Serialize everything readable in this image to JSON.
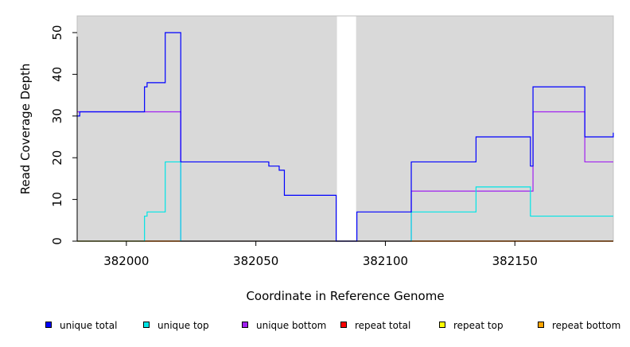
{
  "chart_data": {
    "type": "line",
    "title": "",
    "xlabel": "Coordinate in Reference Genome",
    "ylabel": "Read Coverage Depth",
    "xlim": [
      381981,
      382188
    ],
    "ylim": [
      0,
      54
    ],
    "x_ticks": [
      382000,
      382050,
      382100,
      382150
    ],
    "x_tick_labels": [
      "382000",
      "382050",
      "382100",
      "382150"
    ],
    "y_ticks": [
      0,
      10,
      20,
      30,
      40,
      50
    ],
    "y_tick_labels": [
      "0",
      "10",
      "20",
      "30",
      "40",
      "50"
    ],
    "background_color": "#d9d9d9",
    "gap_region": [
      382081,
      382089
    ],
    "grid": false,
    "legend_position": "bottom",
    "series": [
      {
        "name": "unique total",
        "color": "#0000ff",
        "step_points": [
          [
            381981,
            30
          ],
          [
            381982,
            31
          ],
          [
            382007,
            37
          ],
          [
            382008,
            38
          ],
          [
            382015,
            50
          ],
          [
            382021,
            19
          ],
          [
            382055,
            18
          ],
          [
            382059,
            17
          ],
          [
            382061,
            11
          ],
          [
            382081,
            0
          ],
          [
            382089,
            7
          ],
          [
            382110,
            19
          ],
          [
            382135,
            25
          ],
          [
            382156,
            18
          ],
          [
            382157,
            37
          ],
          [
            382177,
            25
          ],
          [
            382188,
            26
          ]
        ]
      },
      {
        "name": "unique top",
        "color": "#00e5e5",
        "step_points": [
          [
            381981,
            0
          ],
          [
            382007,
            6
          ],
          [
            382008,
            7
          ],
          [
            382015,
            19
          ],
          [
            382021,
            0
          ],
          [
            382081,
            0
          ],
          [
            382089,
            0
          ],
          [
            382110,
            7
          ],
          [
            382135,
            13
          ],
          [
            382156,
            6
          ],
          [
            382188,
            6
          ]
        ]
      },
      {
        "name": "unique bottom",
        "color": "#a020f0",
        "step_points": [
          [
            381981,
            31
          ],
          [
            382021,
            0
          ],
          [
            382081,
            0
          ],
          [
            382089,
            0
          ],
          [
            382110,
            12
          ],
          [
            382157,
            31
          ],
          [
            382177,
            19
          ],
          [
            382188,
            19
          ]
        ]
      },
      {
        "name": "repeat total",
        "color": "#ff0000",
        "step_points": [
          [
            381981,
            0
          ],
          [
            382188,
            0
          ]
        ]
      },
      {
        "name": "repeat top",
        "color": "#ffff00",
        "step_points": [
          [
            381981,
            0
          ],
          [
            382188,
            0
          ]
        ]
      },
      {
        "name": "repeat bottom",
        "color": "#ffa500",
        "step_points": [
          [
            381981,
            0
          ],
          [
            382188,
            0
          ]
        ]
      }
    ]
  }
}
